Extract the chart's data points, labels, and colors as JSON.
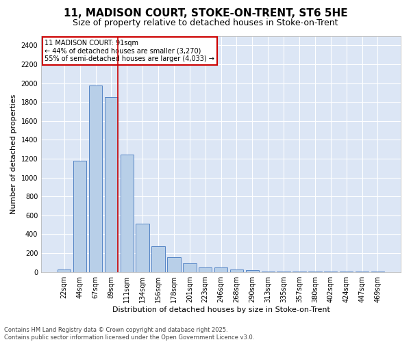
{
  "title_line1": "11, MADISON COURT, STOKE-ON-TRENT, ST6 5HE",
  "title_line2": "Size of property relative to detached houses in Stoke-on-Trent",
  "xlabel": "Distribution of detached houses by size in Stoke-on-Trent",
  "ylabel": "Number of detached properties",
  "categories": [
    "22sqm",
    "44sqm",
    "67sqm",
    "89sqm",
    "111sqm",
    "134sqm",
    "156sqm",
    "178sqm",
    "201sqm",
    "223sqm",
    "246sqm",
    "268sqm",
    "290sqm",
    "313sqm",
    "335sqm",
    "357sqm",
    "380sqm",
    "402sqm",
    "424sqm",
    "447sqm",
    "469sqm"
  ],
  "values": [
    25,
    1175,
    1975,
    1850,
    1240,
    515,
    270,
    155,
    90,
    50,
    45,
    25,
    20,
    5,
    3,
    3,
    3,
    3,
    3,
    3,
    3
  ],
  "bar_color": "#b8cfe8",
  "bar_edge_color": "#5585c5",
  "red_line_index": 3,
  "annotation_text": "11 MADISON COURT: 91sqm\n← 44% of detached houses are smaller (3,270)\n55% of semi-detached houses are larger (4,033) →",
  "annotation_box_facecolor": "#ffffff",
  "annotation_box_edgecolor": "#cc0000",
  "red_line_color": "#cc0000",
  "ylim": [
    0,
    2500
  ],
  "yticks": [
    0,
    200,
    400,
    600,
    800,
    1000,
    1200,
    1400,
    1600,
    1800,
    2000,
    2200,
    2400
  ],
  "plot_bg_color": "#dce6f5",
  "fig_bg_color": "#ffffff",
  "grid_color": "#ffffff",
  "footer_line1": "Contains HM Land Registry data © Crown copyright and database right 2025.",
  "footer_line2": "Contains public sector information licensed under the Open Government Licence v3.0.",
  "title_fontsize": 11,
  "subtitle_fontsize": 9,
  "tick_fontsize": 7,
  "ylabel_fontsize": 8,
  "xlabel_fontsize": 8,
  "annotation_fontsize": 7,
  "footer_fontsize": 6
}
